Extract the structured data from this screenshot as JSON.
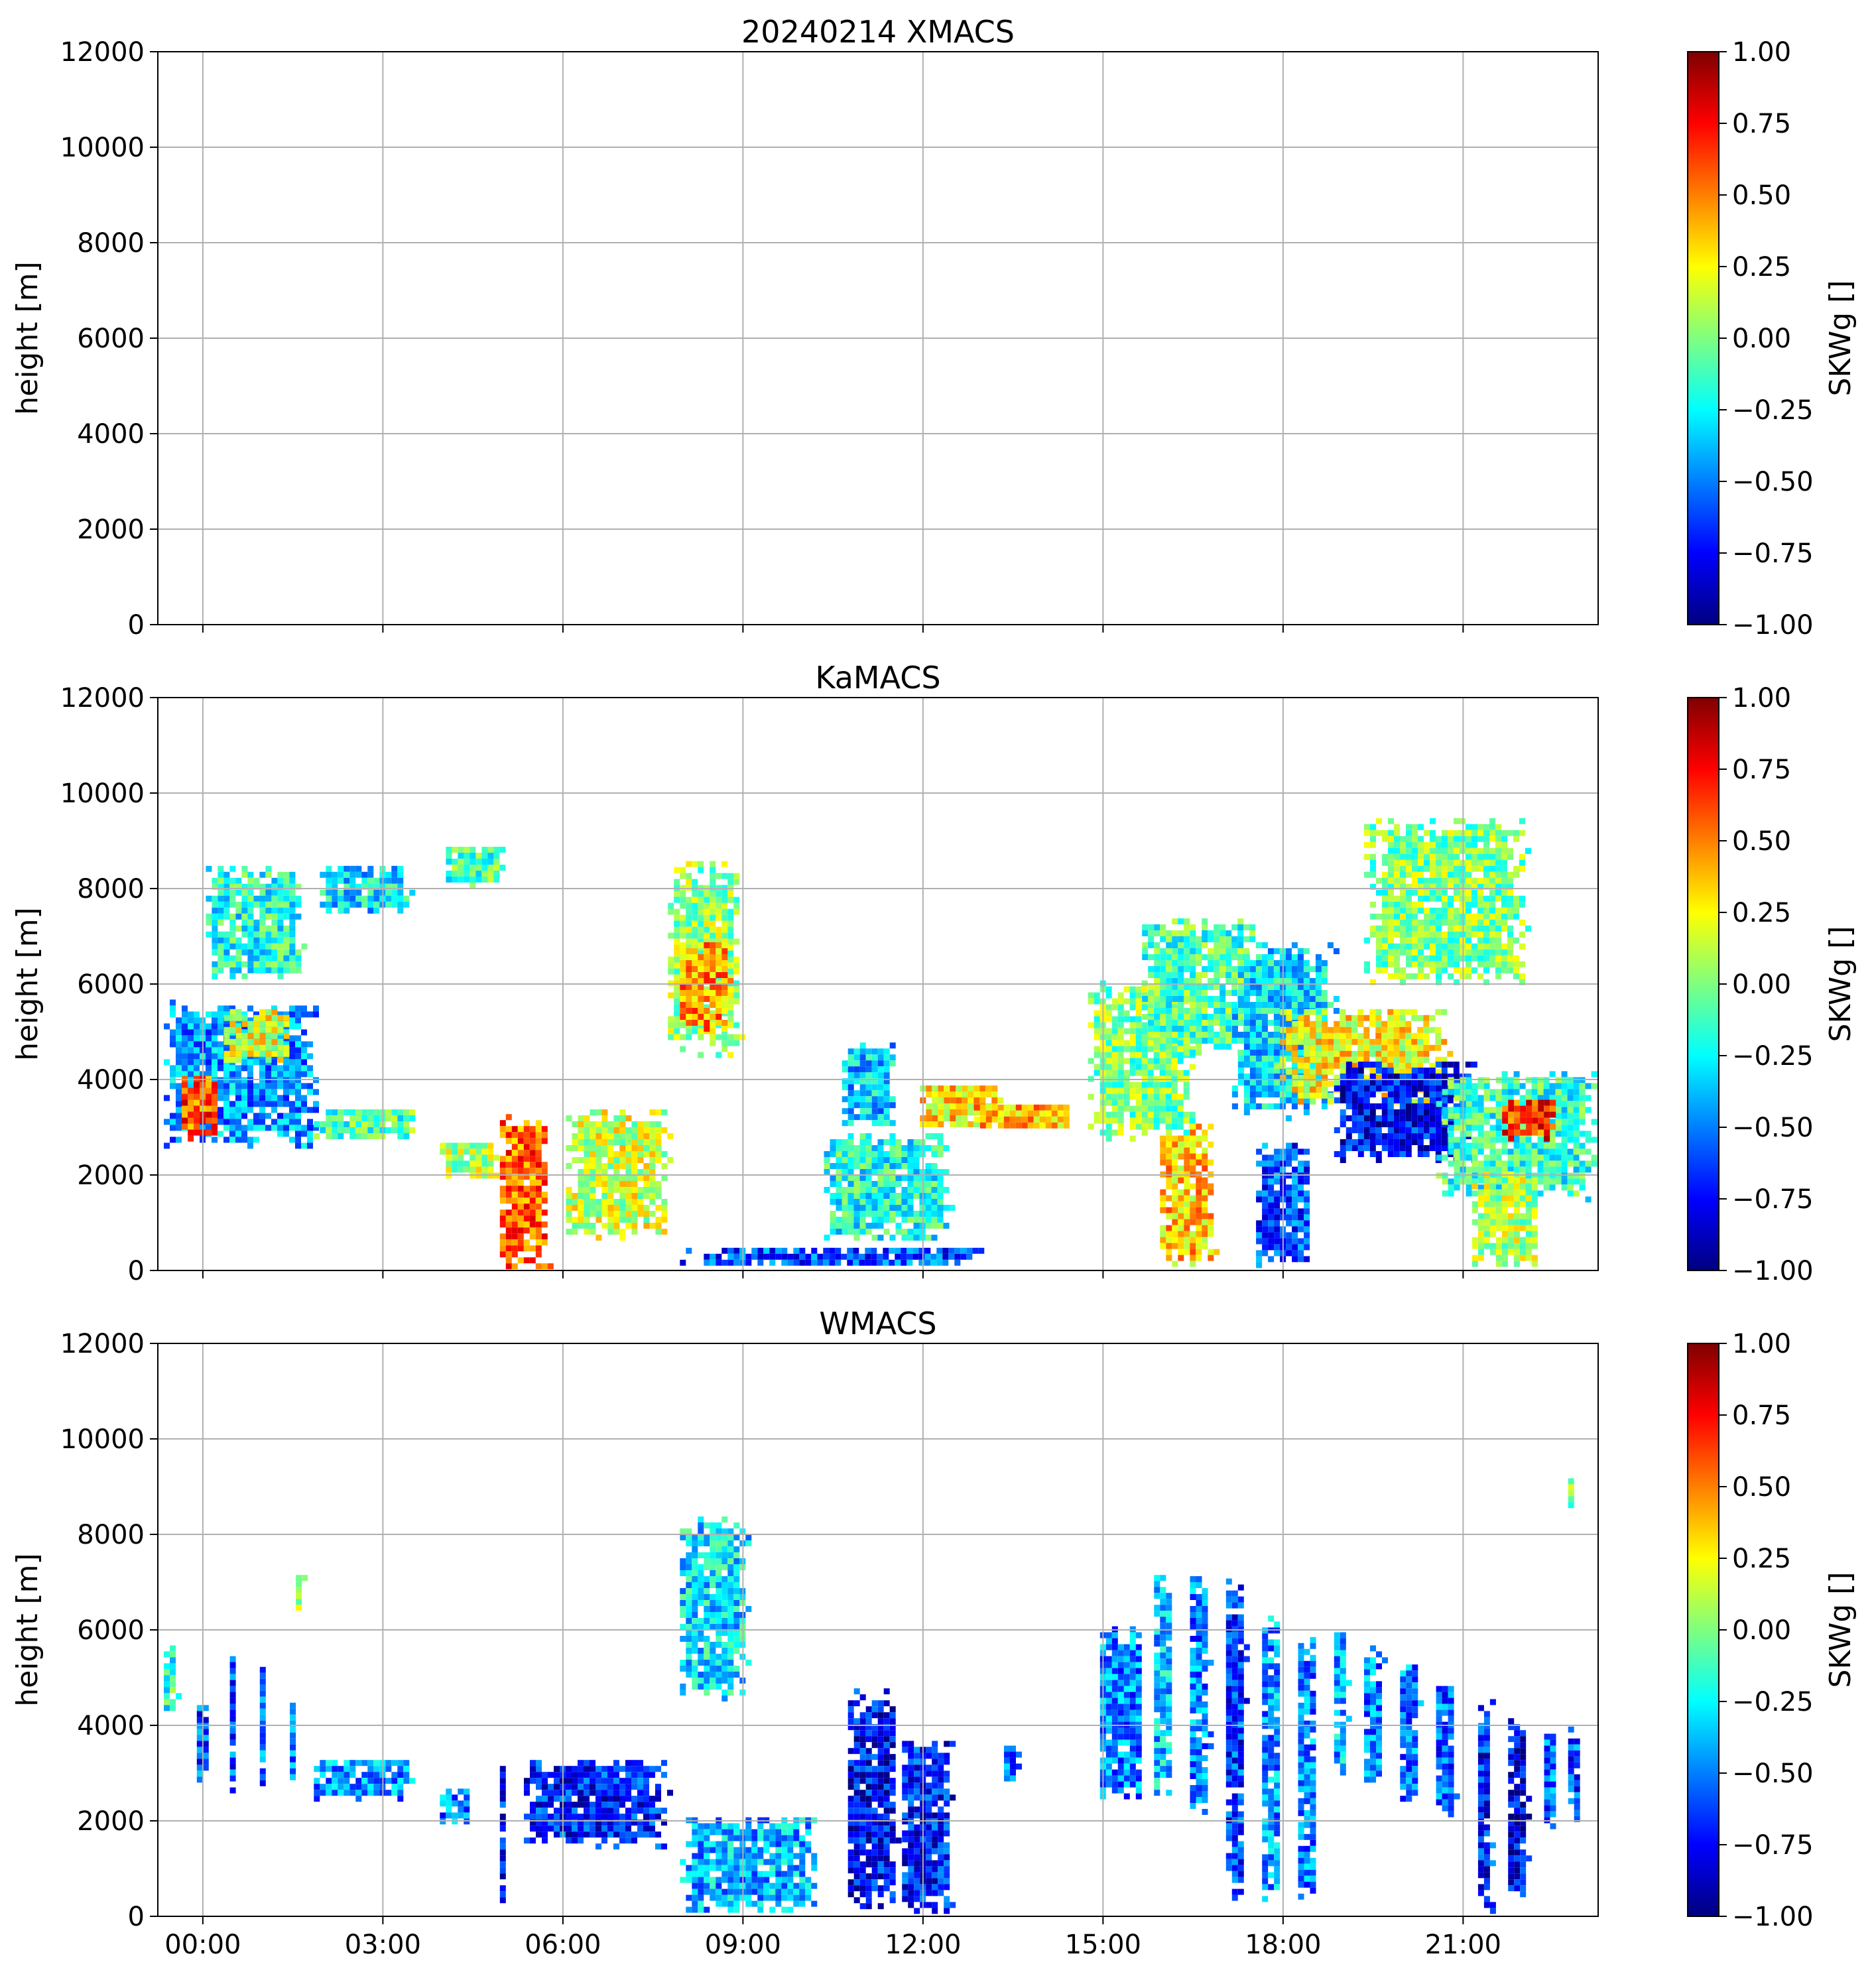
{
  "colors": {
    "jet": [
      "#00007f",
      "#0000ff",
      "#007fff",
      "#00ffff",
      "#7fff7f",
      "#ffff00",
      "#ff7f00",
      "#ff0000",
      "#7f0000"
    ],
    "grid": "#b0b0b0"
  },
  "chart_data": [
    {
      "type": "heatmap",
      "title": "20240214 XMACS",
      "ylabel": "height [m]",
      "colorbar_label": "SKWg []",
      "xlim": [
        0,
        24
      ],
      "ylim": [
        0,
        12000
      ],
      "grid": true,
      "yticks": [
        0,
        2000,
        4000,
        6000,
        8000,
        10000,
        12000
      ],
      "ytick_labels": [
        "0",
        "2000",
        "4000",
        "6000",
        "8000",
        "10000",
        "12000"
      ],
      "colorbar_ticks": [
        1.0,
        0.75,
        0.5,
        0.25,
        0.0,
        -0.25,
        -0.5,
        -0.75,
        -1.0
      ],
      "colorbar_labels": [
        "1.00",
        "0.75",
        "0.50",
        "0.25",
        "0.00",
        "−0.25",
        "−0.50",
        "−0.75",
        "−1.00"
      ],
      "clim": [
        -1,
        1
      ],
      "regions": []
    },
    {
      "type": "heatmap",
      "title": "KaMACS",
      "ylabel": "height [m]",
      "colorbar_label": "SKWg []",
      "xlim": [
        0,
        24
      ],
      "ylim": [
        0,
        12000
      ],
      "grid": true,
      "yticks": [
        0,
        2000,
        4000,
        6000,
        8000,
        10000,
        12000
      ],
      "ytick_labels": [
        "0",
        "2000",
        "4000",
        "6000",
        "8000",
        "10000",
        "12000"
      ],
      "colorbar_ticks": [
        1.0,
        0.75,
        0.5,
        0.25,
        0.0,
        -0.25,
        -0.5,
        -0.75,
        -1.0
      ],
      "colorbar_labels": [
        "1.00",
        "0.75",
        "0.50",
        "0.25",
        "0.00",
        "−0.25",
        "−0.50",
        "−0.75",
        "−1.00"
      ],
      "clim": [
        -1,
        1
      ],
      "regions": [
        {
          "t0": 0.0,
          "t1": 2.7,
          "z0": 2600,
          "z1": 5800,
          "v": -0.45
        },
        {
          "t0": 0.3,
          "t1": 1.0,
          "z0": 2800,
          "z1": 4200,
          "v": 0.6
        },
        {
          "t0": 1.0,
          "t1": 2.2,
          "z0": 4400,
          "z1": 5600,
          "v": 0.2
        },
        {
          "t0": 2.5,
          "t1": 4.3,
          "z0": 2800,
          "z1": 3500,
          "v": -0.1
        },
        {
          "t0": 0.7,
          "t1": 2.4,
          "z0": 6100,
          "z1": 8600,
          "v": -0.2
        },
        {
          "t0": 2.6,
          "t1": 4.2,
          "z0": 7500,
          "z1": 8600,
          "v": -0.3
        },
        {
          "t0": 4.7,
          "t1": 5.8,
          "z0": 8100,
          "z1": 9000,
          "v": -0.1
        },
        {
          "t0": 4.6,
          "t1": 5.7,
          "z0": 2000,
          "z1": 2800,
          "v": 0.1
        },
        {
          "t0": 5.6,
          "t1": 6.5,
          "z0": 100,
          "z1": 3400,
          "v": 0.55
        },
        {
          "t0": 6.7,
          "t1": 8.5,
          "z0": 700,
          "z1": 3500,
          "v": 0.15
        },
        {
          "t0": 8.4,
          "t1": 9.7,
          "z0": 4500,
          "z1": 8700,
          "v": 0.05
        },
        {
          "t0": 8.6,
          "t1": 9.5,
          "z0": 5000,
          "z1": 7000,
          "v": 0.45
        },
        {
          "t0": 11.3,
          "t1": 12.3,
          "z0": 3000,
          "z1": 4900,
          "v": -0.35
        },
        {
          "t0": 8.5,
          "t1": 14.0,
          "z0": 100,
          "z1": 600,
          "v": -0.6
        },
        {
          "t0": 11.0,
          "t1": 13.2,
          "z0": 600,
          "z1": 3000,
          "v": -0.2
        },
        {
          "t0": 12.6,
          "t1": 14.1,
          "z0": 3000,
          "z1": 4000,
          "v": 0.3
        },
        {
          "t0": 13.5,
          "t1": 15.3,
          "z0": 3000,
          "z1": 3600,
          "v": 0.4
        },
        {
          "t0": 15.4,
          "t1": 17.3,
          "z0": 2700,
          "z1": 6200,
          "v": 0.0
        },
        {
          "t0": 16.3,
          "t1": 18.3,
          "z0": 4500,
          "z1": 7500,
          "v": -0.1
        },
        {
          "t0": 17.8,
          "t1": 19.6,
          "z0": 3200,
          "z1": 7000,
          "v": -0.3
        },
        {
          "t0": 18.5,
          "t1": 21.5,
          "z0": 3500,
          "z1": 5600,
          "v": 0.25
        },
        {
          "t0": 19.5,
          "t1": 22.0,
          "z0": 2300,
          "z1": 4500,
          "v": -0.75
        },
        {
          "t0": 21.2,
          "t1": 24.0,
          "z0": 1500,
          "z1": 4300,
          "v": -0.15
        },
        {
          "t0": 22.3,
          "t1": 23.3,
          "z0": 2800,
          "z1": 3700,
          "v": 0.65
        },
        {
          "t0": 16.6,
          "t1": 17.6,
          "z0": 100,
          "z1": 3200,
          "v": 0.35
        },
        {
          "t0": 18.2,
          "t1": 19.2,
          "z0": 100,
          "z1": 2800,
          "v": -0.6
        },
        {
          "t0": 21.8,
          "t1": 23.0,
          "z0": 100,
          "z1": 2200,
          "v": 0.1
        },
        {
          "t0": 20.0,
          "t1": 22.8,
          "z0": 6000,
          "z1": 9600,
          "v": 0.0
        }
      ]
    },
    {
      "type": "heatmap",
      "title": "WMACS",
      "ylabel": "height [m]",
      "colorbar_label": "SKWg []",
      "xlim": [
        0,
        24
      ],
      "ylim": [
        0,
        12000
      ],
      "grid": true,
      "xticks": [
        0.75,
        3.75,
        6.75,
        9.75,
        12.75,
        15.75,
        18.75,
        21.75
      ],
      "xtick_labels": [
        "00:00",
        "03:00",
        "06:00",
        "09:00",
        "12:00",
        "15:00",
        "18:00",
        "21:00"
      ],
      "yticks": [
        0,
        2000,
        4000,
        6000,
        8000,
        10000,
        12000
      ],
      "ytick_labels": [
        "0",
        "2000",
        "4000",
        "6000",
        "8000",
        "10000",
        "12000"
      ],
      "colorbar_ticks": [
        1.0,
        0.75,
        0.5,
        0.25,
        0.0,
        -0.25,
        -0.5,
        -0.75,
        -1.0
      ],
      "colorbar_labels": [
        "1.00",
        "0.75",
        "0.50",
        "0.25",
        "0.00",
        "−0.25",
        "−0.50",
        "−0.75",
        "−1.00"
      ],
      "clim": [
        -1,
        1
      ],
      "regions": [
        {
          "t0": 0.0,
          "t1": 0.3,
          "z0": 4200,
          "z1": 5800,
          "v": -0.15
        },
        {
          "t0": 0.55,
          "t1": 0.8,
          "z0": 2700,
          "z1": 4800,
          "v": -0.6
        },
        {
          "t0": 1.1,
          "t1": 1.3,
          "z0": 2600,
          "z1": 5700,
          "v": -0.6
        },
        {
          "t0": 1.6,
          "t1": 1.8,
          "z0": 2700,
          "z1": 5600,
          "v": -0.55
        },
        {
          "t0": 2.1,
          "t1": 2.3,
          "z0": 2800,
          "z1": 4600,
          "v": -0.5
        },
        {
          "t0": 2.5,
          "t1": 4.2,
          "z0": 2500,
          "z1": 3400,
          "v": -0.45
        },
        {
          "t0": 4.6,
          "t1": 5.2,
          "z0": 2000,
          "z1": 2800,
          "v": -0.5
        },
        {
          "t0": 5.6,
          "t1": 5.75,
          "z0": 100,
          "z1": 3400,
          "v": -0.75
        },
        {
          "t0": 6.0,
          "t1": 8.5,
          "z0": 1500,
          "z1": 3400,
          "v": -0.7
        },
        {
          "t0": 8.6,
          "t1": 9.8,
          "z0": 4500,
          "z1": 8500,
          "v": -0.3
        },
        {
          "t0": 8.6,
          "t1": 11.0,
          "z0": 100,
          "z1": 2200,
          "v": -0.4
        },
        {
          "t0": 11.4,
          "t1": 12.3,
          "z0": 100,
          "z1": 4900,
          "v": -0.75
        },
        {
          "t0": 12.3,
          "t1": 13.2,
          "z0": 100,
          "z1": 3800,
          "v": -0.7
        },
        {
          "t0": 14.0,
          "t1": 14.3,
          "z0": 2700,
          "z1": 3700,
          "v": -0.5
        },
        {
          "t0": 15.6,
          "t1": 16.4,
          "z0": 2400,
          "z1": 6200,
          "v": -0.5
        },
        {
          "t0": 16.5,
          "t1": 16.9,
          "z0": 2500,
          "z1": 7400,
          "v": -0.35
        },
        {
          "t0": 17.1,
          "t1": 17.5,
          "z0": 2000,
          "z1": 7500,
          "v": -0.5
        },
        {
          "t0": 17.7,
          "t1": 18.1,
          "z0": 100,
          "z1": 7200,
          "v": -0.65
        },
        {
          "t0": 18.3,
          "t1": 18.7,
          "z0": 100,
          "z1": 6800,
          "v": -0.45
        },
        {
          "t0": 18.9,
          "t1": 19.3,
          "z0": 100,
          "z1": 6100,
          "v": -0.5
        },
        {
          "t0": 19.5,
          "t1": 19.8,
          "z0": 2900,
          "z1": 6200,
          "v": -0.4
        },
        {
          "t0": 20.0,
          "t1": 20.4,
          "z0": 2800,
          "z1": 5800,
          "v": -0.5
        },
        {
          "t0": 20.6,
          "t1": 21.0,
          "z0": 2300,
          "z1": 5400,
          "v": -0.5
        },
        {
          "t0": 21.2,
          "t1": 21.6,
          "z0": 2000,
          "z1": 5200,
          "v": -0.55
        },
        {
          "t0": 21.9,
          "t1": 22.2,
          "z0": 100,
          "z1": 4800,
          "v": -0.7
        },
        {
          "t0": 22.4,
          "t1": 22.8,
          "z0": 100,
          "z1": 4400,
          "v": -0.8
        },
        {
          "t0": 23.0,
          "t1": 23.3,
          "z0": 1800,
          "z1": 4200,
          "v": -0.55
        },
        {
          "t0": 23.4,
          "t1": 23.7,
          "z0": 2000,
          "z1": 4100,
          "v": -0.6
        },
        {
          "t0": 23.4,
          "t1": 23.6,
          "z0": 8600,
          "z1": 9300,
          "v": -0.05
        },
        {
          "t0": 2.2,
          "t1": 2.4,
          "z0": 6300,
          "z1": 7400,
          "v": 0.0
        }
      ]
    }
  ]
}
